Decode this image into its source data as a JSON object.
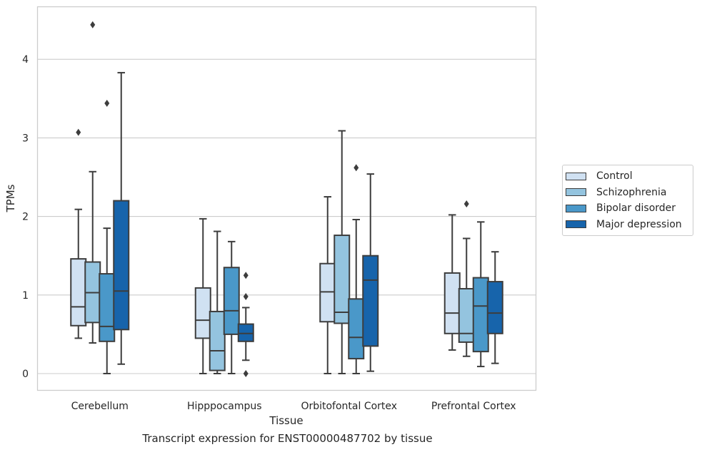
{
  "chart_data": {
    "type": "box",
    "xlabel": "Tissue",
    "ylabel": "TPMs",
    "ylim": [
      -0.22,
      4.67
    ],
    "yticks": [
      0,
      1,
      2,
      3,
      4
    ],
    "grid": "horizontal",
    "legend_position": "right",
    "categories": [
      "Cerebellum",
      "Hipppocampus",
      "Orbitofontal Cortex",
      "Prefrontal Cortex"
    ],
    "series": [
      {
        "name": "Control",
        "color": "#d0e1f2",
        "boxes": [
          {
            "whislo": 0.45,
            "q1": 0.61,
            "med": 0.85,
            "q3": 1.46,
            "whishi": 2.09,
            "fliers": [
              3.07
            ]
          },
          {
            "whislo": 0.0,
            "q1": 0.45,
            "med": 0.68,
            "q3": 1.09,
            "whishi": 1.97,
            "fliers": []
          },
          {
            "whislo": 0.0,
            "q1": 0.66,
            "med": 1.04,
            "q3": 1.4,
            "whishi": 2.25,
            "fliers": []
          },
          {
            "whislo": 0.3,
            "q1": 0.51,
            "med": 0.77,
            "q3": 1.28,
            "whishi": 2.02,
            "fliers": []
          }
        ]
      },
      {
        "name": "Schizophrenia",
        "color": "#94c4df",
        "boxes": [
          {
            "whislo": 0.39,
            "q1": 0.65,
            "med": 1.03,
            "q3": 1.42,
            "whishi": 2.57,
            "fliers": [
              4.44
            ]
          },
          {
            "whislo": 0.0,
            "q1": 0.04,
            "med": 0.29,
            "q3": 0.79,
            "whishi": 1.81,
            "fliers": []
          },
          {
            "whislo": 0.0,
            "q1": 0.64,
            "med": 0.78,
            "q3": 1.76,
            "whishi": 3.09,
            "fliers": []
          },
          {
            "whislo": 0.22,
            "q1": 0.4,
            "med": 0.51,
            "q3": 1.08,
            "whishi": 1.72,
            "fliers": [
              2.16
            ]
          }
        ]
      },
      {
        "name": "Bipolar disorder",
        "color": "#4a98c9",
        "boxes": [
          {
            "whislo": 0.0,
            "q1": 0.41,
            "med": 0.6,
            "q3": 1.27,
            "whishi": 1.85,
            "fliers": [
              3.44
            ]
          },
          {
            "whislo": 0.0,
            "q1": 0.5,
            "med": 0.8,
            "q3": 1.35,
            "whishi": 1.68,
            "fliers": []
          },
          {
            "whislo": 0.0,
            "q1": 0.19,
            "med": 0.46,
            "q3": 0.95,
            "whishi": 1.96,
            "fliers": [
              2.62
            ]
          },
          {
            "whislo": 0.09,
            "q1": 0.28,
            "med": 0.86,
            "q3": 1.22,
            "whishi": 1.93,
            "fliers": []
          }
        ]
      },
      {
        "name": "Major depression",
        "color": "#1764ab",
        "boxes": [
          {
            "whislo": 0.12,
            "q1": 0.56,
            "med": 1.05,
            "q3": 2.2,
            "whishi": 3.83,
            "fliers": []
          },
          {
            "whislo": 0.17,
            "q1": 0.41,
            "med": 0.51,
            "q3": 0.63,
            "whishi": 0.84,
            "fliers": [
              1.25,
              0.98,
              0.0
            ]
          },
          {
            "whislo": 0.03,
            "q1": 0.35,
            "med": 1.19,
            "q3": 1.5,
            "whishi": 2.54,
            "fliers": []
          },
          {
            "whislo": 0.13,
            "q1": 0.51,
            "med": 0.77,
            "q3": 1.17,
            "whishi": 1.55,
            "fliers": []
          }
        ]
      }
    ]
  },
  "caption": "Transcript expression for ENST00000487702 by tissue"
}
